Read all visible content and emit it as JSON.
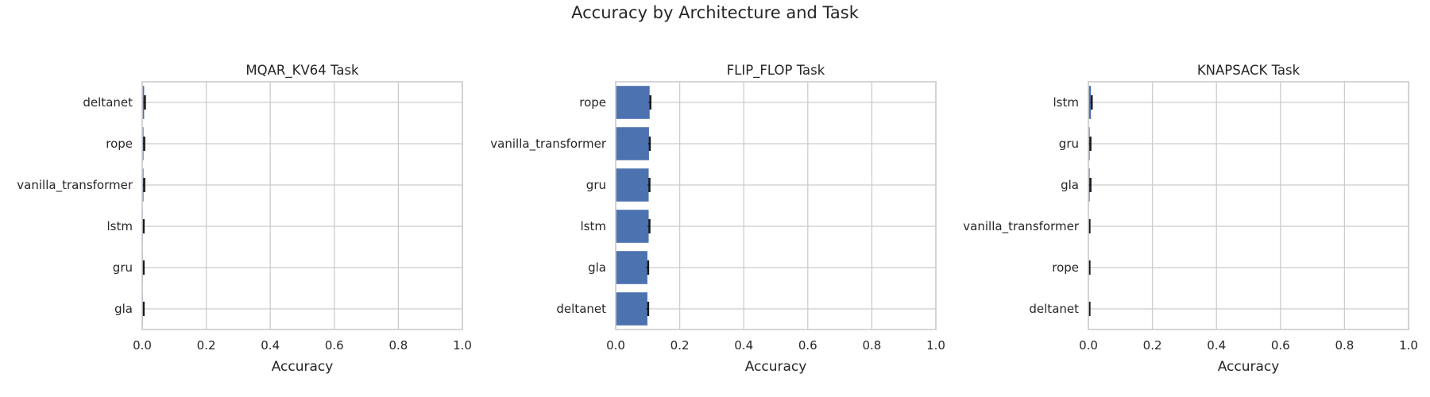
{
  "figure": {
    "title": "Accuracy by Architecture and Task",
    "bar_color": "#4C72B0",
    "error_color": "#1a1a1a",
    "grid_color": "#cccccc",
    "spine_color": "#cccccc"
  },
  "chart_data": [
    {
      "type": "bar",
      "orientation": "horizontal",
      "title": "MQAR_KV64 Task",
      "xlabel": "Accuracy",
      "ylabel": "",
      "xlim": [
        0,
        1
      ],
      "xticks": [
        "0.0",
        "0.2",
        "0.4",
        "0.6",
        "0.8",
        "1.0"
      ],
      "grid": true,
      "categories": [
        "deltanet",
        "rope",
        "vanilla_transformer",
        "lstm",
        "gru",
        "gla"
      ],
      "values": [
        0.006,
        0.004,
        0.004,
        0.002,
        0.002,
        0.002
      ],
      "errors": [
        0.002,
        0.002,
        0.002,
        0.001,
        0.001,
        0.001
      ]
    },
    {
      "type": "bar",
      "orientation": "horizontal",
      "title": "FLIP_FLOP Task",
      "xlabel": "Accuracy",
      "ylabel": "",
      "xlim": [
        0,
        1
      ],
      "xticks": [
        "0.0",
        "0.2",
        "0.4",
        "0.6",
        "0.8",
        "1.0"
      ],
      "grid": true,
      "categories": [
        "rope",
        "vanilla_transformer",
        "gru",
        "lstm",
        "gla",
        "deltanet"
      ],
      "values": [
        0.106,
        0.104,
        0.103,
        0.103,
        0.099,
        0.099
      ],
      "errors": [
        0.003,
        0.003,
        0.003,
        0.003,
        0.003,
        0.003
      ]
    },
    {
      "type": "bar",
      "orientation": "horizontal",
      "title": "KNAPSACK Task",
      "xlabel": "Accuracy",
      "ylabel": "",
      "xlim": [
        0,
        1
      ],
      "xticks": [
        "0.0",
        "0.2",
        "0.4",
        "0.6",
        "0.8",
        "1.0"
      ],
      "grid": true,
      "categories": [
        "lstm",
        "gru",
        "gla",
        "vanilla_transformer",
        "rope",
        "deltanet"
      ],
      "values": [
        0.008,
        0.004,
        0.004,
        0.001,
        0.001,
        0.001
      ],
      "errors": [
        0.002,
        0.002,
        0.002,
        0.001,
        0.001,
        0.001
      ]
    }
  ]
}
